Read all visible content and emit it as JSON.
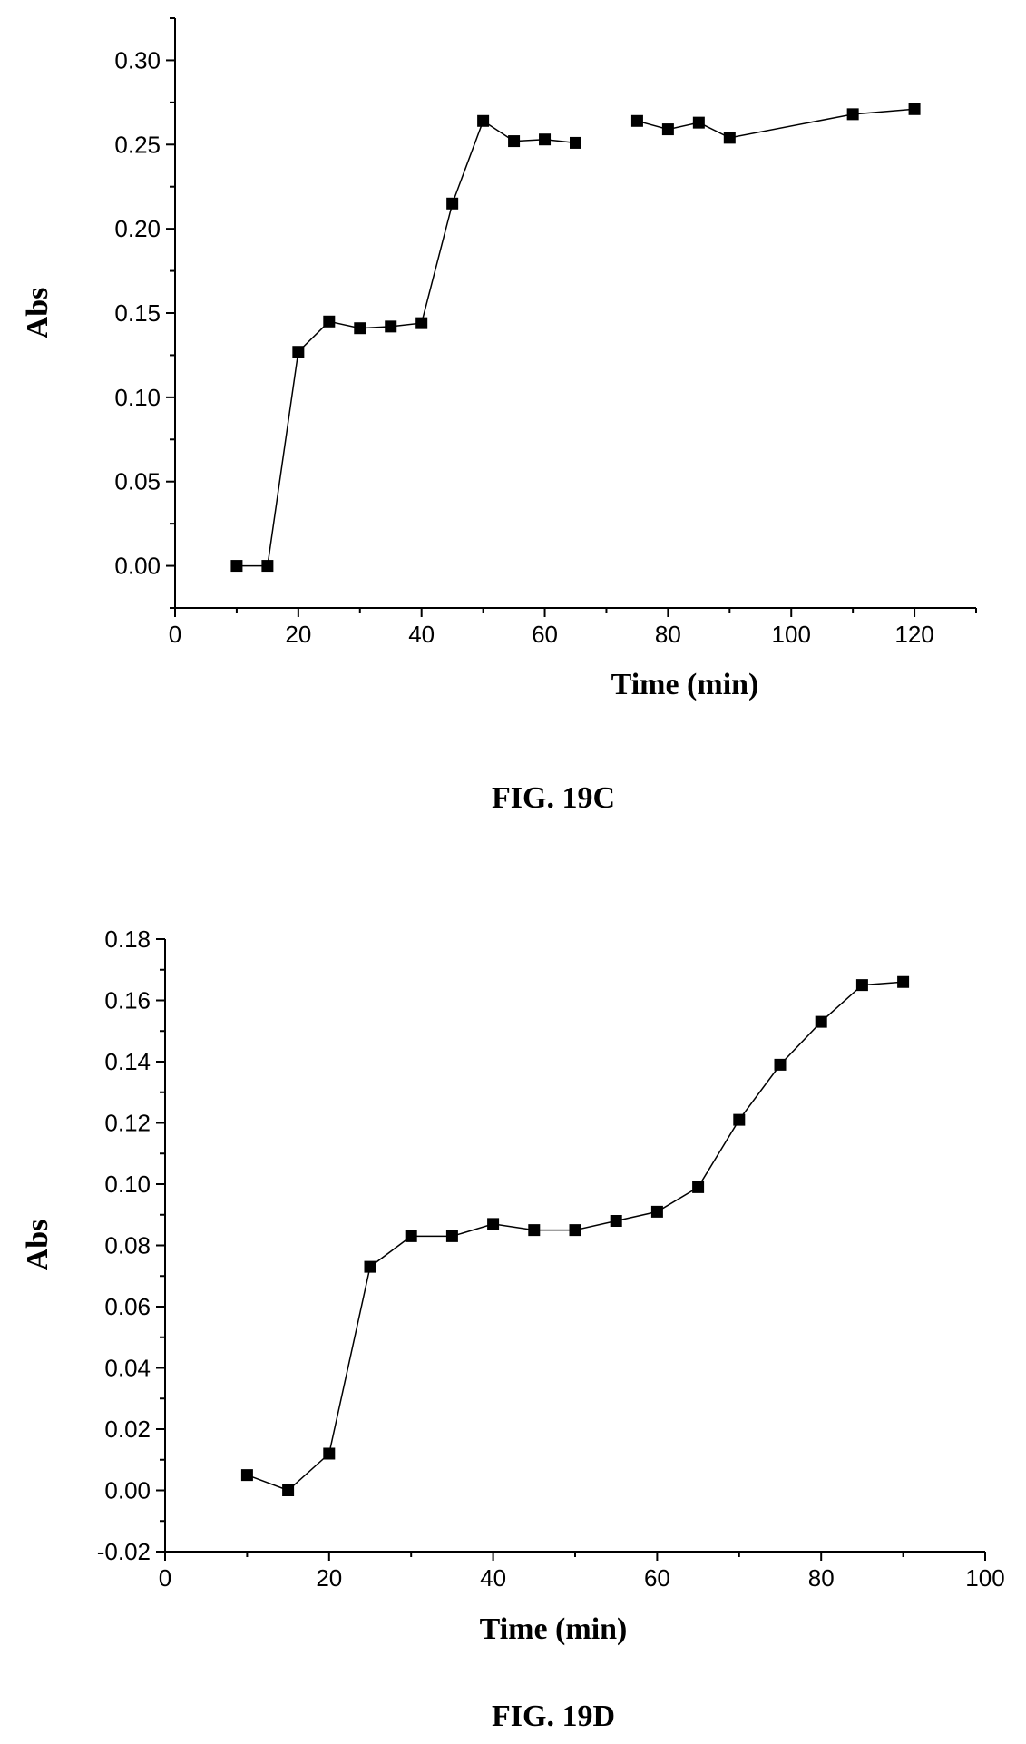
{
  "chart_data": [
    {
      "type": "line",
      "caption": "FIG. 19C",
      "xlabel": "Time (min)",
      "ylabel": "Abs",
      "xlim": [
        0,
        130
      ],
      "ylim": [
        -0.025,
        0.325
      ],
      "xticks": [
        0,
        20,
        40,
        60,
        80,
        100,
        120
      ],
      "yticks": [
        0.0,
        0.05,
        0.1,
        0.15,
        0.2,
        0.25,
        0.3
      ],
      "xtick_labels": [
        "0",
        "20",
        "40",
        "60",
        "80",
        "100",
        "120"
      ],
      "ytick_labels": [
        "0.00",
        "0.05",
        "0.10",
        "0.15",
        "0.20",
        "0.25",
        "0.30"
      ],
      "marker": "square",
      "segments": [
        {
          "x": [
            10,
            15,
            20,
            25,
            30,
            35,
            40,
            45,
            50,
            55,
            60,
            65
          ],
          "y": [
            0.0,
            0.0,
            0.127,
            0.145,
            0.141,
            0.142,
            0.144,
            0.215,
            0.264,
            0.252,
            0.253,
            0.251
          ]
        },
        {
          "x": [
            75,
            80,
            85,
            90,
            110,
            120
          ],
          "y": [
            0.264,
            0.259,
            0.263,
            0.254,
            0.268,
            0.271
          ]
        }
      ],
      "grid": false
    },
    {
      "type": "line",
      "caption": "FIG. 19D",
      "xlabel": "Time (min)",
      "ylabel": "Abs",
      "xlim": [
        0,
        100
      ],
      "ylim": [
        -0.02,
        0.18
      ],
      "xticks": [
        0,
        20,
        40,
        60,
        80,
        100
      ],
      "yticks": [
        -0.02,
        0.0,
        0.02,
        0.04,
        0.06,
        0.08,
        0.1,
        0.12,
        0.14,
        0.16,
        0.18
      ],
      "xtick_labels": [
        "0",
        "20",
        "40",
        "60",
        "80",
        "100"
      ],
      "ytick_labels": [
        "-0.02",
        "0.00",
        "0.02",
        "0.04",
        "0.06",
        "0.08",
        "0.10",
        "0.12",
        "0.14",
        "0.16",
        "0.18"
      ],
      "marker": "square",
      "segments": [
        {
          "x": [
            10,
            15,
            20,
            25,
            30,
            35,
            40,
            45,
            50,
            55,
            60,
            65,
            70,
            75,
            80,
            85,
            90
          ],
          "y": [
            0.005,
            0.0,
            0.012,
            0.073,
            0.083,
            0.083,
            0.087,
            0.085,
            0.085,
            0.088,
            0.091,
            0.099,
            0.121,
            0.139,
            0.153,
            0.165,
            0.166
          ]
        }
      ],
      "grid": false
    }
  ]
}
